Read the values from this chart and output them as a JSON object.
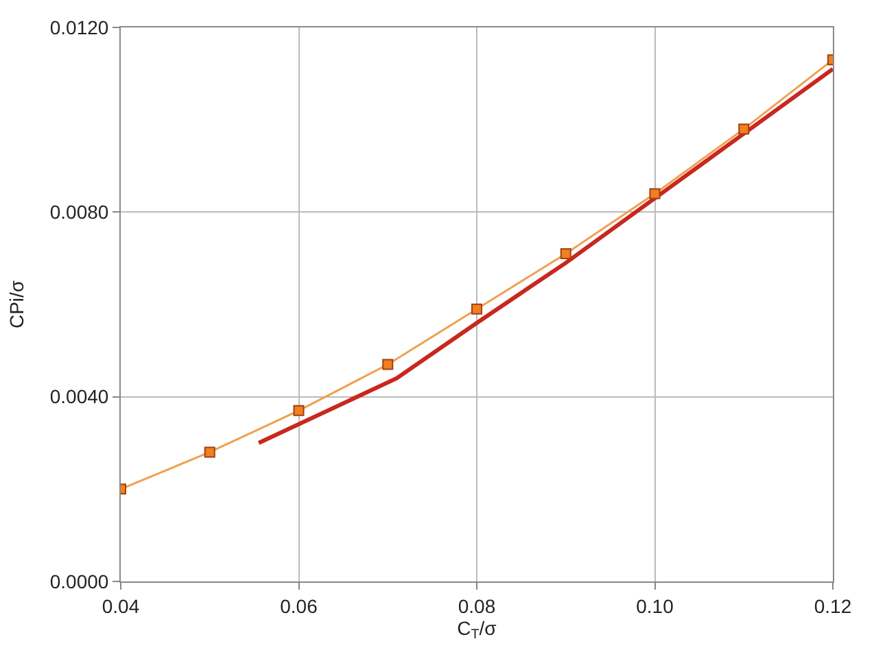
{
  "chart_data": {
    "type": "line",
    "xlabel": "C$_{T}$/σ",
    "ylabel": "CPi/σ",
    "xlim": [
      0.04,
      0.12
    ],
    "ylim": [
      0,
      0.012
    ],
    "xticks": [
      {
        "value": 0.04,
        "label": "0.04"
      },
      {
        "value": 0.06,
        "label": "0.06"
      },
      {
        "value": 0.08,
        "label": "0.08"
      },
      {
        "value": 0.1,
        "label": "0.10"
      },
      {
        "value": 0.12,
        "label": "0.12"
      }
    ],
    "yticks": [
      {
        "value": 0,
        "label": "0.0000"
      },
      {
        "value": 0.004,
        "label": "0.0040"
      },
      {
        "value": 0.008,
        "label": "0.0080"
      },
      {
        "value": 0.012,
        "label": "0.0120"
      }
    ],
    "grid": true,
    "series": [
      {
        "color": "#c8281e",
        "marker": "none",
        "x": [
          0.0555,
          0.071,
          0.08,
          0.09,
          0.1,
          0.11,
          0.12
        ],
        "values": [
          0.003,
          0.0044,
          0.0056,
          0.0069,
          0.0083,
          0.0097,
          0.0111
        ]
      },
      {
        "color": "#f0a050",
        "marker": "square",
        "x": [
          0.04,
          0.05,
          0.06,
          0.07,
          0.08,
          0.09,
          0.1,
          0.11,
          0.12
        ],
        "values": [
          0.002,
          0.0028,
          0.0037,
          0.0047,
          0.0059,
          0.0071,
          0.0084,
          0.0098,
          0.0113
        ]
      }
    ]
  }
}
